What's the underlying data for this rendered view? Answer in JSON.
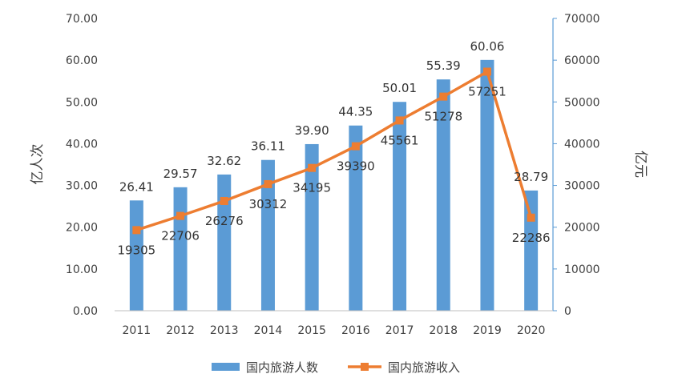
{
  "chart_data": {
    "type": "bar+line",
    "categories": [
      "2011",
      "2012",
      "2013",
      "2014",
      "2015",
      "2016",
      "2017",
      "2018",
      "2019",
      "2020"
    ],
    "series": [
      {
        "name": "国内旅游人数",
        "type": "bar",
        "axis": "left",
        "values": [
          26.41,
          29.57,
          32.62,
          36.11,
          39.9,
          44.35,
          50.01,
          55.39,
          60.06,
          28.79
        ],
        "labels": [
          "26.41",
          "29.57",
          "32.62",
          "36.11",
          "39.90",
          "44.35",
          "50.01",
          "55.39",
          "60.06",
          "28.79"
        ],
        "color": "#5B9BD5"
      },
      {
        "name": "国内旅游收入",
        "type": "line",
        "axis": "right",
        "values": [
          19305,
          22706,
          26276,
          30312,
          34195,
          39390,
          45561,
          51278,
          57251,
          22286
        ],
        "labels": [
          "19305",
          "22706",
          "26276",
          "30312",
          "34195",
          "39390",
          "45561",
          "51278",
          "57251",
          "22286"
        ],
        "color": "#ED7D31"
      }
    ],
    "y_left": {
      "label": "亿人次",
      "range": [
        0,
        70
      ],
      "ticks": [
        "0.00",
        "10.00",
        "20.00",
        "30.00",
        "40.00",
        "50.00",
        "60.00",
        "70.00"
      ]
    },
    "y_right": {
      "label": "亿元",
      "range": [
        0,
        70000
      ],
      "ticks": [
        "0",
        "10000",
        "20000",
        "30000",
        "40000",
        "50000",
        "60000",
        "70000"
      ]
    },
    "legend": {
      "position": "bottom",
      "items": [
        "国内旅游人数",
        "国内旅游收入"
      ]
    },
    "colors": {
      "axis": "#BFBFBF",
      "right_axis": "#5B9BD5"
    }
  }
}
